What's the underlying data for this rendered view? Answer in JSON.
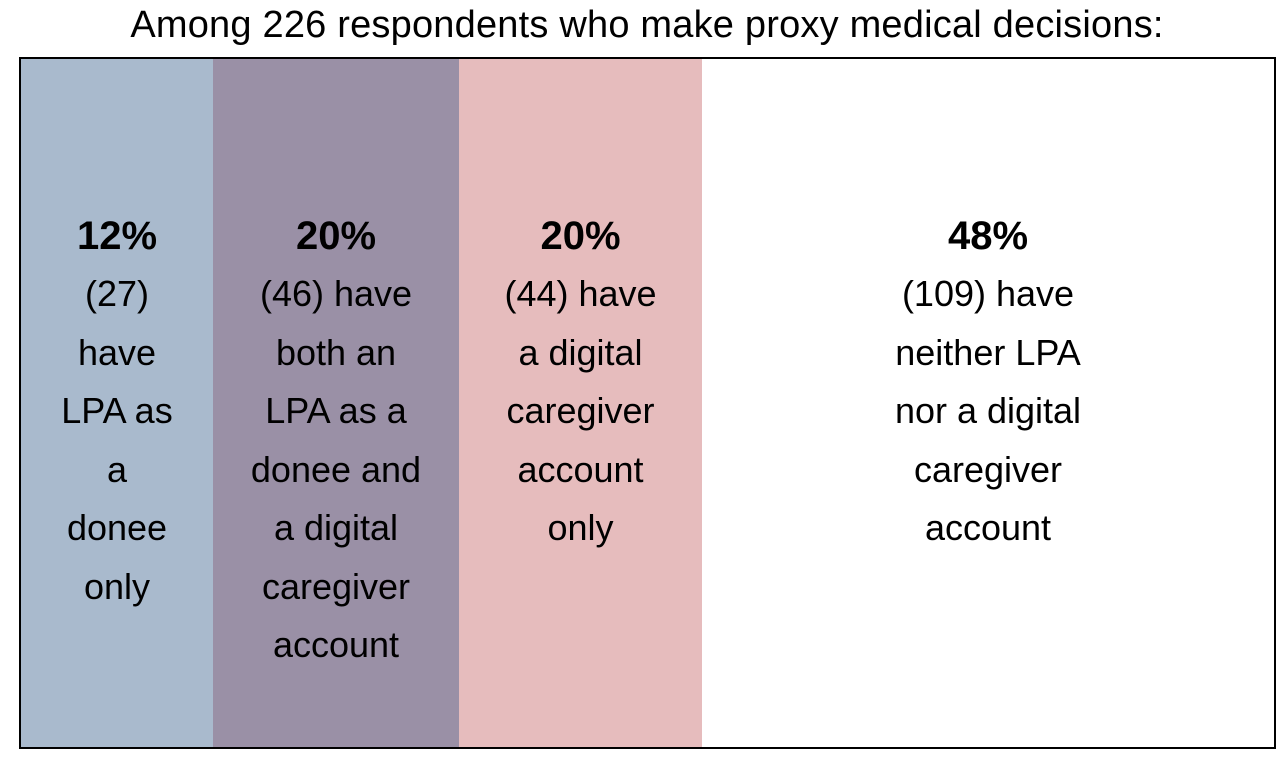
{
  "chart_data": {
    "type": "bar",
    "orientation": "stacked-horizontal-100",
    "title": "Among 226 respondents who make proxy medical decisions:",
    "total": 226,
    "segments": [
      {
        "percent_label": "12%",
        "percent": 12,
        "count": 27,
        "description": "(27) have LPA as a donee only",
        "color": "#a9bacd",
        "lines": [
          "(27)",
          "have",
          "LPA as",
          "a",
          "donee",
          "only"
        ],
        "text_width": 140
      },
      {
        "percent_label": "20%",
        "percent": 20,
        "count": 46,
        "description": "(46) have both an LPA as a donee and a digital caregiver account",
        "color": "#9a90a6",
        "lines": [
          "(46) have",
          "both an",
          "LPA as a",
          "donee and",
          "a digital",
          "caregiver",
          "account"
        ],
        "text_width": 0
      },
      {
        "percent_label": "20%",
        "percent": 20,
        "count": 44,
        "description": "(44) have a digital caregiver account only",
        "color": "#e6bcbd",
        "lines": [
          "(44) have",
          "a digital",
          "caregiver",
          "account",
          "only"
        ],
        "text_width": 0
      },
      {
        "percent_label": "48%",
        "percent": 48,
        "count": 109,
        "description": "(109) have neither LPA nor a digital caregiver account",
        "color": "#ffffff",
        "lines": [
          "(109) have",
          "neither LPA",
          "nor a digital",
          "caregiver",
          "account"
        ],
        "text_width": 0
      }
    ]
  }
}
